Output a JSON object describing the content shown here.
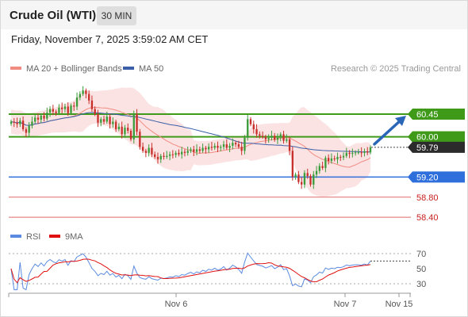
{
  "header": {
    "title": "Crude Oil (WTI)",
    "timeframe": "30 MIN"
  },
  "datetime": "Friday, November 7, 2025 3:59:02 AM CET",
  "legend": {
    "bb_label": "MA 20 + Bollinger Bands",
    "ma50_label": "MA 50",
    "credit": "Research © 2025 Trading Central",
    "rsi_label": "RSI",
    "rsi_ma_label": "9MA"
  },
  "colors": {
    "bullish": "#3a9c3a",
    "bearish": "#c8302c",
    "bb_line": "#f08c82",
    "bb_band": "#fbdcdc",
    "ma50": "#3a5fa8",
    "resistance": "#3f9a1a",
    "pivot": "#2f6fdc",
    "support": "#e06a6a",
    "arrow": "#2a66b8",
    "rsi": "#5b8be0",
    "rsi_ma": "#e01010"
  },
  "chart_data": [
    {
      "type": "candlestick",
      "title": "Crude Oil (WTI)",
      "interval": "30 MIN",
      "x_ticks": [
        "Nov 6",
        "Nov 7",
        "Nov 15"
      ],
      "ylim": [
        58.2,
        60.7
      ],
      "last_price": "59.79",
      "levels": [
        {
          "value": 60.45,
          "label": "60.45",
          "kind": "resistance"
        },
        {
          "value": 60.0,
          "label": "60.00",
          "kind": "resistance"
        },
        {
          "value": 59.2,
          "label": "59.20",
          "kind": "pivot"
        },
        {
          "value": 58.8,
          "label": "58.80",
          "kind": "support"
        },
        {
          "value": 58.4,
          "label": "58.40",
          "kind": "support"
        }
      ],
      "forecast": {
        "from": 59.79,
        "to": 60.45
      },
      "closes": [
        60.3,
        60.28,
        60.25,
        60.32,
        60.15,
        60.08,
        60.22,
        60.3,
        60.38,
        60.34,
        60.42,
        60.36,
        60.48,
        60.55,
        60.5,
        60.47,
        60.58,
        60.55,
        60.6,
        60.47,
        60.62,
        60.6,
        60.78,
        60.85,
        60.92,
        60.85,
        60.72,
        60.55,
        60.45,
        60.28,
        60.35,
        60.3,
        60.4,
        60.25,
        60.3,
        60.15,
        60.2,
        60.05,
        60.18,
        60.12,
        59.95,
        60.45,
        60.1,
        59.8,
        59.72,
        59.68,
        59.78,
        59.65,
        59.6,
        59.55,
        59.62,
        59.6,
        59.62,
        59.65,
        59.64,
        59.68,
        59.65,
        59.7,
        59.68,
        59.72,
        59.75,
        59.7,
        59.75,
        59.72,
        59.78,
        59.75,
        59.8,
        59.78,
        59.82,
        59.78,
        59.8,
        59.85,
        59.78,
        59.82,
        59.88,
        59.85,
        59.8,
        59.72,
        59.98,
        60.35,
        60.25,
        60.15,
        60.05,
        60.02,
        60.0,
        59.95,
        59.98,
        60.02,
        59.94,
        59.98,
        60.05,
        59.92,
        59.95,
        59.72,
        59.2,
        59.25,
        59.1,
        59.05,
        59.28,
        59.22,
        59.05,
        59.25,
        59.32,
        59.42,
        59.38,
        59.58,
        59.52,
        59.57,
        59.55,
        59.6,
        59.59,
        59.62,
        59.68,
        59.66,
        59.68,
        59.69,
        59.69,
        59.68,
        59.71,
        59.69,
        59.79
      ]
    },
    {
      "type": "line",
      "title": "RSI",
      "series": [
        {
          "name": "RSI"
        },
        {
          "name": "9MA"
        }
      ],
      "y_ticks": [
        30,
        50,
        70
      ],
      "ylim": [
        20,
        80
      ]
    }
  ]
}
